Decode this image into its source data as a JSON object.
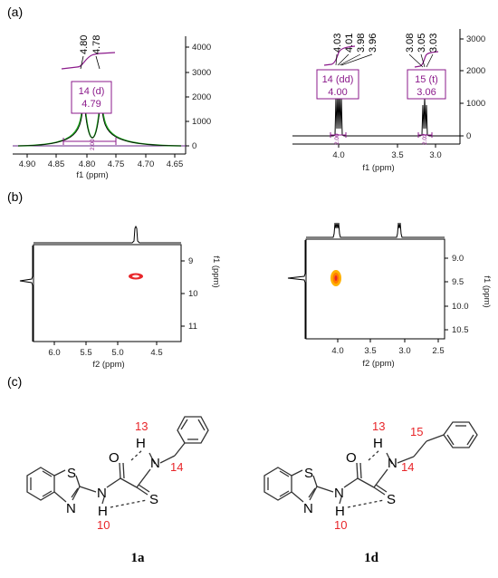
{
  "figure": {
    "panels": {
      "a": "(a)",
      "b": "(b)",
      "c": "(c)"
    },
    "panel_a": {
      "left": {
        "peak_labels": [
          "4.80",
          "4.78"
        ],
        "multiplet": {
          "label": "14 (d)",
          "shift": "4.79"
        },
        "integral": "2.00",
        "x_ticks": [
          "4.90",
          "4.85",
          "4.80",
          "4.75",
          "4.70",
          "4.65"
        ],
        "x_label": "f1 (ppm)",
        "y_ticks": [
          "4000",
          "3000",
          "2000",
          "1000",
          "0"
        ]
      },
      "right": {
        "peak_labels_1": [
          "4.03",
          "4.01",
          "3.98",
          "3.96"
        ],
        "peak_labels_2": [
          "3.08",
          "3.05",
          "3.03"
        ],
        "multiplet_1": {
          "label": "14 (dd)",
          "shift": "4.00"
        },
        "multiplet_2": {
          "label": "15 (t)",
          "shift": "3.06"
        },
        "integral_1": "2.00",
        "integral_2": "2.02",
        "x_ticks": [
          "4.0",
          "3.5",
          "3.0"
        ],
        "x_label": "f1 (ppm)",
        "y_ticks": [
          "3000",
          "2000",
          "1000",
          "0"
        ]
      }
    },
    "panel_b": {
      "left": {
        "x_ticks": [
          "6.0",
          "5.5",
          "5.0",
          "4.5"
        ],
        "x_label": "f2 (ppm)",
        "y_ticks": [
          "9",
          "10",
          "11"
        ],
        "y_label": "f1 (ppm)"
      },
      "right": {
        "x_ticks": [
          "4.0",
          "3.5",
          "3.0",
          "2.5"
        ],
        "x_label": "f2 (ppm)",
        "y_ticks": [
          "9.0",
          "9.5",
          "10.0",
          "10.5"
        ],
        "y_label": "f1 (ppm)"
      }
    },
    "panel_c": {
      "left": {
        "atoms": {
          "S_ring": "S",
          "N_ring": "N",
          "O": "O",
          "N_amide": "N",
          "H_amide": "H",
          "N_thio": "N",
          "H_thio": "H",
          "S_thio": "S"
        },
        "numbers": [
          "13",
          "14",
          "10"
        ],
        "compound": "1a"
      },
      "right": {
        "atoms": {
          "S_ring": "S",
          "N_ring": "N",
          "O": "O",
          "N_amide": "N",
          "H_amide": "H",
          "N_thio": "N",
          "H_thio": "H",
          "S_thio": "S"
        },
        "numbers": [
          "13",
          "15",
          "14",
          "10"
        ],
        "compound": "1d"
      }
    },
    "colors": {
      "spectrum": "#000000",
      "integral_curve": "#8b1a8b",
      "label_box": "#8b1a8b",
      "fit": "#22aa22",
      "cross_peak_left": "#e8262a",
      "cross_peak_right": "#ff9a00",
      "atom_numbers": "#e8262a"
    }
  }
}
